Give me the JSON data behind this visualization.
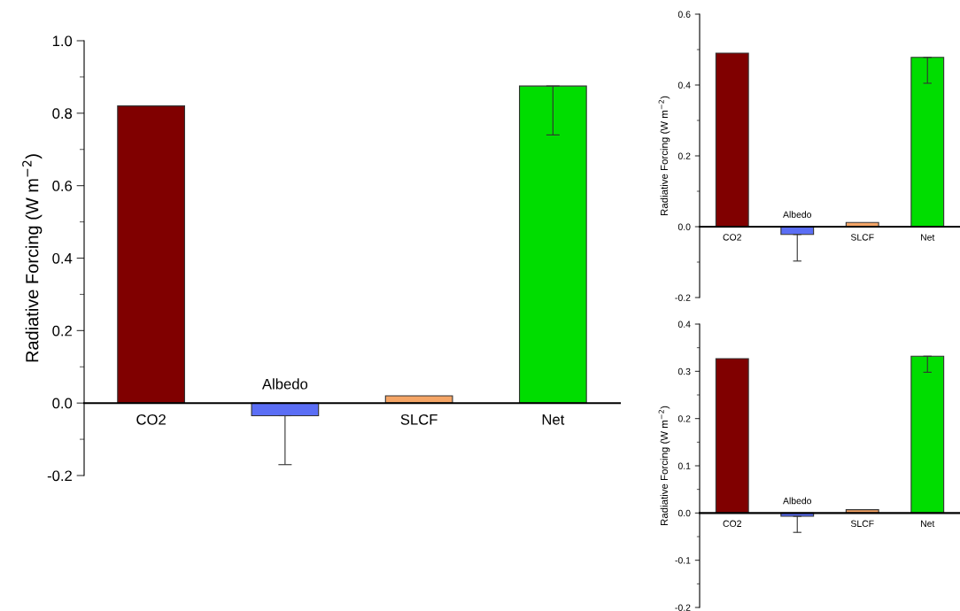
{
  "chart_data": [
    {
      "type": "bar",
      "ylabel": "Radiative Forcing (W m$^{−2}$)",
      "categories": [
        "CO2",
        "Albedo",
        "SLCF",
        "Net"
      ],
      "values": [
        0.82,
        -0.035,
        0.02,
        0.875
      ],
      "colors": [
        "#800000",
        "#5b6ef5",
        "#f5a566",
        "#00dd00"
      ],
      "errors": [
        null,
        [
          -0.17,
          -0.035
        ],
        null,
        [
          0.74,
          0.875
        ]
      ],
      "ylim": [
        -0.2,
        1.0
      ],
      "yticks": [
        {
          "value": -0.2,
          "label": "-0.2"
        },
        {
          "value": 0,
          "label": "0.0"
        },
        0.2,
        0.4,
        0.6,
        0.8,
        {
          "value": 1.0,
          "label": "1.0"
        }
      ],
      "grid": false,
      "legend": false
    },
    {
      "type": "bar",
      "ylabel": "Radiative Forcing (W m$^{−2}$)",
      "categories": [
        "CO2",
        "Albedo",
        "SLCF",
        "Net"
      ],
      "values": [
        0.49,
        -0.022,
        0.012,
        0.478
      ],
      "colors": [
        "#800000",
        "#5b6ef5",
        "#f5a566",
        "#00dd00"
      ],
      "errors": [
        null,
        [
          -0.097,
          -0.022
        ],
        null,
        [
          0.405,
          0.478
        ]
      ],
      "ylim": [
        -0.2,
        0.6
      ],
      "yticks": [
        {
          "value": -0.2,
          "label": "-0.2"
        },
        {
          "value": 0,
          "label": "0.0"
        },
        0.2,
        0.4,
        0.6
      ],
      "grid": false,
      "legend": false
    },
    {
      "type": "bar",
      "ylabel": "Radiative Forcing (W m$^{−2}$)",
      "categories": [
        "CO2",
        "Albedo",
        "SLCF",
        "Net"
      ],
      "values": [
        0.327,
        -0.007,
        0.007,
        0.332
      ],
      "colors": [
        "#800000",
        "#5b6ef5",
        "#f5a566",
        "#00dd00"
      ],
      "errors": [
        null,
        [
          -0.041,
          -0.007
        ],
        null,
        [
          0.298,
          0.332
        ]
      ],
      "ylim": [
        -0.2,
        0.4
      ],
      "yticks": [
        {
          "value": -0.2,
          "label": "-0.2"
        },
        {
          "value": -0.1,
          "label": "-0.1"
        },
        {
          "value": 0,
          "label": "0.0"
        },
        0.1,
        0.2,
        0.3,
        0.4
      ],
      "grid": false,
      "legend": false
    }
  ]
}
